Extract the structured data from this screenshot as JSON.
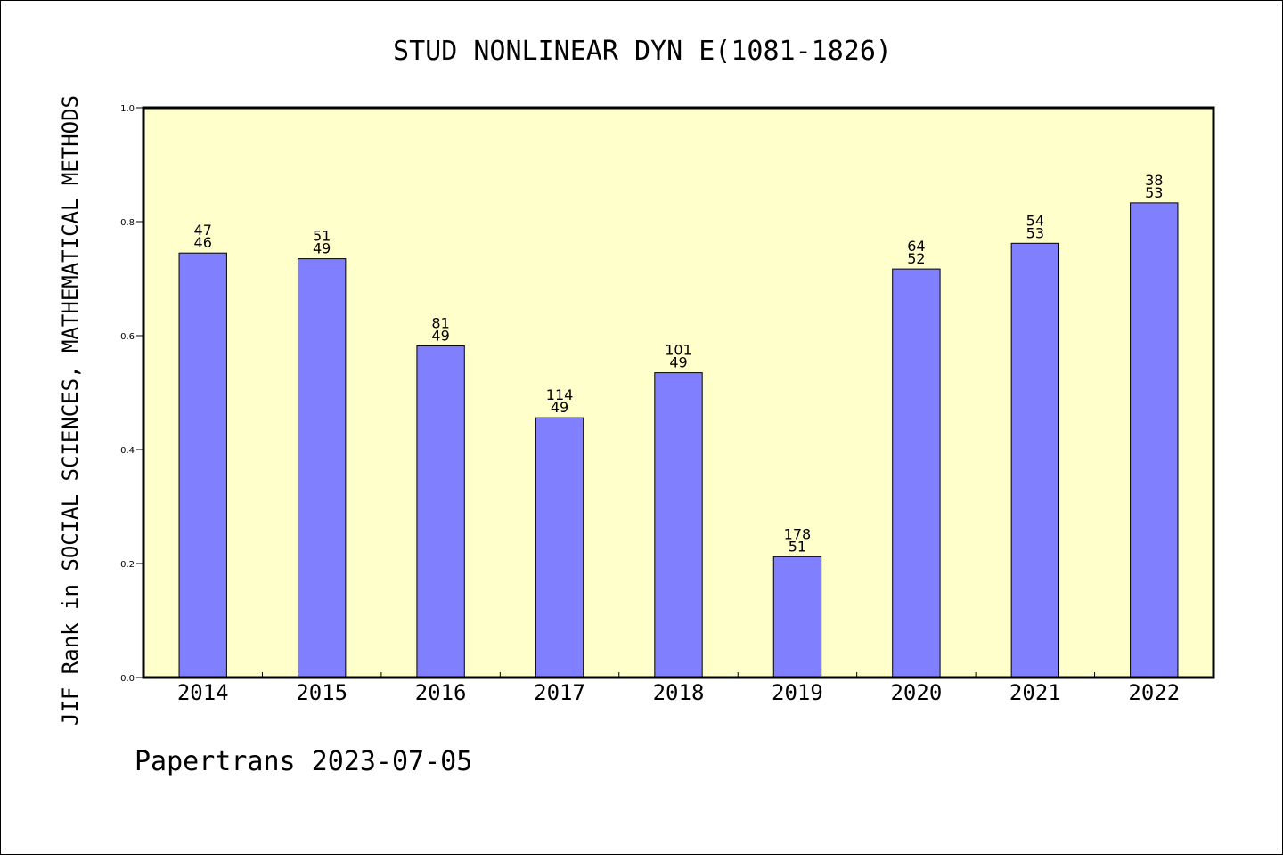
{
  "chart_data": {
    "type": "bar",
    "title": "STUD NONLINEAR DYN E(1081-1826)",
    "ylabel": "JIF Rank in SOCIAL SCIENCES, MATHEMATICAL METHODS",
    "xlabel": "",
    "ylim": [
      0,
      1.0
    ],
    "yticks": [
      "0.0",
      "0.2",
      "0.4",
      "0.6",
      "0.8",
      "1.0"
    ],
    "categories": [
      "2014",
      "2015",
      "2016",
      "2017",
      "2018",
      "2019",
      "2020",
      "2021",
      "2022"
    ],
    "values": [
      0.745,
      0.735,
      0.582,
      0.456,
      0.535,
      0.212,
      0.717,
      0.762,
      0.833
    ],
    "labels_top": [
      "47",
      "51",
      "81",
      "114",
      "101",
      "178",
      "64",
      "54",
      "38"
    ],
    "labels_bottom": [
      "46",
      "49",
      "49",
      "49",
      "49",
      "51",
      "52",
      "53",
      "53"
    ],
    "grid": false,
    "colors": {
      "bar": "#8080ff",
      "plot_background": "#ffffcc",
      "bar_edge": "#000000"
    }
  },
  "footer": "Papertrans 2023-07-05"
}
